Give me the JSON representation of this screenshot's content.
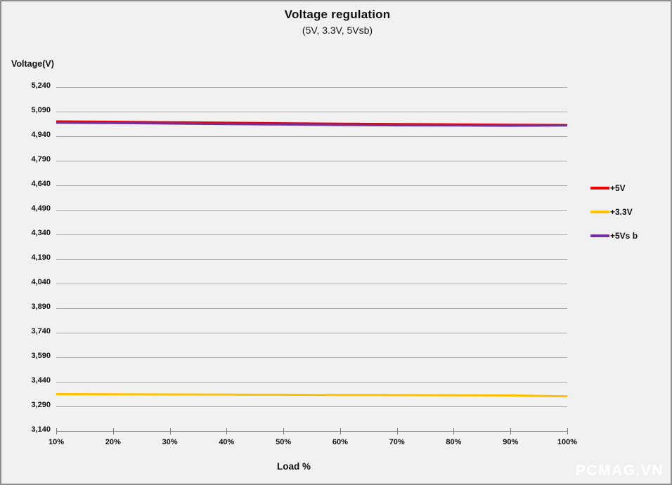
{
  "page": {
    "background": "#f1f1f2",
    "border_color": "#8f8f8f",
    "gridline_color": "#a8a8a8",
    "axis_color": "#7d7d7d",
    "text_color": "#111111"
  },
  "header": {
    "title": "Voltage regulation",
    "subtitle": "(5V, 3.3V, 5Vsb)"
  },
  "watermark": {
    "text": "PCMAG.VN",
    "color": "#ffffff"
  },
  "chart_data": {
    "type": "line",
    "title": "Voltage regulation",
    "subtitle": "(5V, 3.3V, 5Vsb)",
    "xlabel": "Load %",
    "ylabel": "Voltage(V)",
    "x_categories": [
      "10%",
      "20%",
      "30%",
      "40%",
      "50%",
      "60%",
      "70%",
      "80%",
      "90%",
      "100%"
    ],
    "y_tick_labels": [
      "5,240",
      "5,090",
      "4,940",
      "4,790",
      "4,640",
      "4,490",
      "4,340",
      "4,190",
      "4,040",
      "3,890",
      "3,740",
      "3,590",
      "3,440",
      "3,290",
      "3,140"
    ],
    "ylim": [
      3.14,
      5.24
    ],
    "y_step": 0.15,
    "grid": true,
    "legend_position": "right",
    "series": [
      {
        "name": "+5V",
        "legend_label": "+5V",
        "color": "#ee0000",
        "values": [
          5.03,
          5.028,
          5.025,
          5.022,
          5.019,
          5.016,
          5.014,
          5.012,
          5.01,
          5.008
        ]
      },
      {
        "name": "+3.3V",
        "legend_label": "+3.3V",
        "color": "#ffc000",
        "values": [
          3.365,
          3.364,
          3.363,
          3.362,
          3.361,
          3.36,
          3.359,
          3.358,
          3.357,
          3.351
        ]
      },
      {
        "name": "+5Vsb",
        "legend_label": "+5Vs b",
        "color": "#7030a0",
        "values": [
          5.022,
          5.02,
          5.017,
          5.014,
          5.011,
          5.008,
          5.006,
          5.005,
          5.004,
          5.005
        ]
      }
    ]
  }
}
